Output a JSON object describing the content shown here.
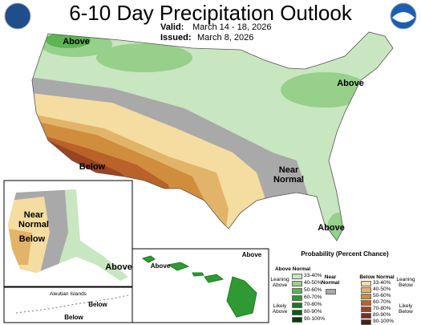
{
  "title": "6-10 Day Precipitation Outlook",
  "valid": {
    "label": "Valid:",
    "dates": "March 14 - 18, 2026"
  },
  "issued": {
    "label": "Issued:",
    "date": "March 8, 2026"
  },
  "map_labels": {
    "conus": [
      "Above",
      "Below",
      "Near Normal",
      "Above",
      "Above"
    ],
    "alaska": [
      "Near Normal",
      "Below",
      "Above"
    ],
    "aleutians": {
      "title": "Aleutian Islands",
      "labels": [
        "Below",
        "Below"
      ]
    },
    "hawaii": [
      "Above",
      "Above"
    ]
  },
  "legend": {
    "title": "Probability (Percent Chance)",
    "bins": [
      "33-40%",
      "40-50%",
      "50-60%",
      "60-70%",
      "70-80%",
      "80-90%",
      "90-100%"
    ],
    "above": {
      "name": "Above Normal",
      "leaning": "Leaning Above",
      "likely": "Likely Above",
      "colors": [
        "#c8e6c0",
        "#96d08a",
        "#5bb552",
        "#2f9a33",
        "#1a7a24",
        "#0b5c16",
        "#033d0c"
      ]
    },
    "near": {
      "name": "Near Normal",
      "color": "#a9a9a9"
    },
    "below": {
      "name": "Below Normal",
      "leaning": "Leaning Below",
      "likely": "Likely Below",
      "colors": [
        "#f5dca0",
        "#e2b469",
        "#d08d3e",
        "#b9632a",
        "#9a4423",
        "#76301b",
        "#4b1f12"
      ]
    }
  }
}
